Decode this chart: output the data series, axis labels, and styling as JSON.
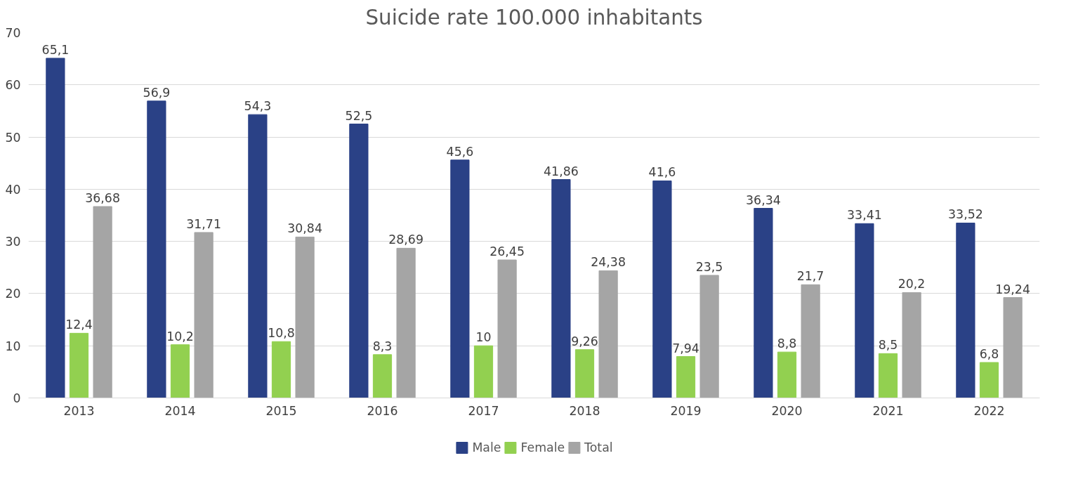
{
  "chart_data": {
    "type": "bar",
    "title": "Suicide rate 100.000 inhabitants",
    "categories": [
      "2013",
      "2014",
      "2015",
      "2016",
      "2017",
      "2018",
      "2019",
      "2020",
      "2021",
      "2022"
    ],
    "series": [
      {
        "name": "Male",
        "color": "#2a4186",
        "values": [
          65.1,
          56.9,
          54.3,
          52.5,
          45.6,
          41.86,
          41.6,
          36.34,
          33.41,
          33.52
        ],
        "value_labels": [
          "65,1",
          "56,9",
          "54,3",
          "52,5",
          "45,6",
          "41,86",
          "41,6",
          "36,34",
          "33,41",
          "33,52"
        ]
      },
      {
        "name": "Female",
        "color": "#92d050",
        "values": [
          12.4,
          10.2,
          10.8,
          8.3,
          10,
          9.26,
          7.94,
          8.8,
          8.5,
          6.8
        ],
        "value_labels": [
          "12,4",
          "10,2",
          "10,8",
          "8,3",
          "10",
          "9,26",
          "7,94",
          "8,8",
          "8,5",
          "6,8"
        ]
      },
      {
        "name": "Total",
        "color": "#a5a5a5",
        "values": [
          36.68,
          31.71,
          30.84,
          28.69,
          26.45,
          24.38,
          23.5,
          21.7,
          20.2,
          19.24
        ],
        "value_labels": [
          "36,68",
          "31,71",
          "30,84",
          "28,69",
          "26,45",
          "24,38",
          "23,5",
          "21,7",
          "20,2",
          "19,24"
        ]
      }
    ],
    "ylim": [
      0,
      70
    ],
    "yticks": [
      0,
      10,
      20,
      30,
      40,
      50,
      60,
      70
    ],
    "grid": "y",
    "legend": "bottom"
  }
}
